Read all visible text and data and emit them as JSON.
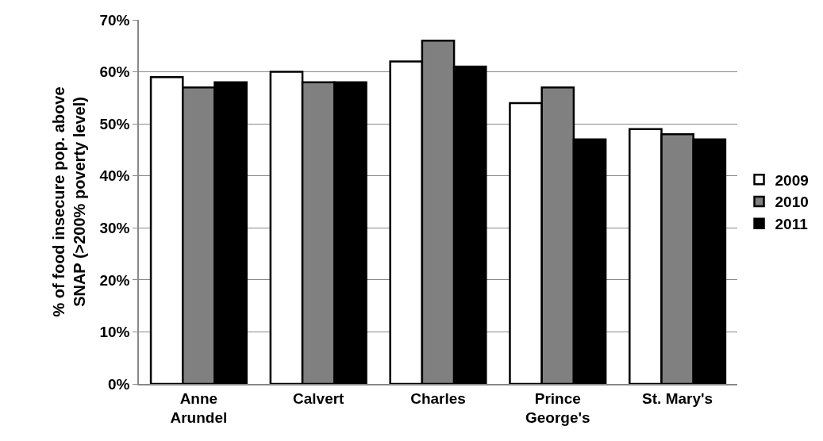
{
  "chart_data": {
    "type": "bar",
    "ylabel": "% of food insecure pop. above\nSNAP (>200% poverty level)",
    "categories": [
      "Anne\nArundel",
      "Calvert",
      "Charles",
      "Prince\nGeorge's",
      "St. Mary's"
    ],
    "series": [
      {
        "name": "2009",
        "color": "#ffffff",
        "values": [
          59,
          60,
          62,
          54,
          49
        ]
      },
      {
        "name": "2010",
        "color": "#808080",
        "values": [
          57,
          58,
          66,
          57,
          48
        ]
      },
      {
        "name": "2011",
        "color": "#000000",
        "values": [
          58,
          58,
          61,
          47,
          47
        ]
      }
    ],
    "ylim": [
      0,
      70
    ],
    "yticks": [
      {
        "value": 0,
        "label": "0%"
      },
      {
        "value": 10,
        "label": "10%"
      },
      {
        "value": 20,
        "label": "20%"
      },
      {
        "value": 30,
        "label": "30%"
      },
      {
        "value": 40,
        "label": "40%"
      },
      {
        "value": 50,
        "label": "50%"
      },
      {
        "value": 60,
        "label": "60%"
      },
      {
        "value": 70,
        "label": "70%"
      }
    ],
    "grid": "y",
    "legend": "right"
  }
}
